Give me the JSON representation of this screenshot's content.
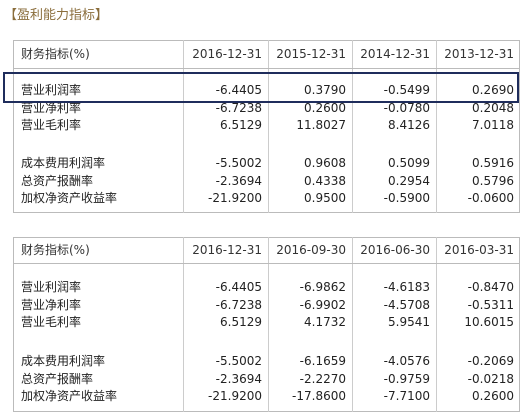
{
  "title": "【盈利能力指标】",
  "tables": [
    {
      "header": [
        "财务指标(%)",
        "2016-12-31",
        "2015-12-31",
        "2014-12-31",
        "2013-12-31"
      ],
      "groups": [
        [
          [
            "营业利润率",
            "-6.4405",
            "0.3790",
            "-0.5499",
            "0.2690"
          ],
          [
            "营业净利率",
            "-6.7238",
            "0.2600",
            "-0.0780",
            "0.2048"
          ],
          [
            "营业毛利率",
            "6.5129",
            "11.8027",
            "8.4126",
            "7.0118"
          ]
        ],
        [
          [
            "成本费用利润率",
            "-5.5002",
            "0.9608",
            "0.5099",
            "0.5916"
          ],
          [
            "总资产报酬率",
            "-2.3694",
            "0.4338",
            "0.2954",
            "0.5796"
          ],
          [
            "加权净资产收益率",
            "-21.9200",
            "0.9500",
            "-0.5900",
            "-0.0600"
          ]
        ]
      ]
    },
    {
      "header": [
        "财务指标(%)",
        "2016-12-31",
        "2016-09-30",
        "2016-06-30",
        "2016-03-31"
      ],
      "groups": [
        [
          [
            "营业利润率",
            "-6.4405",
            "-6.9862",
            "-4.6183",
            "-0.8470"
          ],
          [
            "营业净利率",
            "-6.7238",
            "-6.9902",
            "-4.5708",
            "-0.5311"
          ],
          [
            "营业毛利率",
            "6.5129",
            "4.1732",
            "5.9541",
            "10.6015"
          ]
        ],
        [
          [
            "成本费用利润率",
            "-5.5002",
            "-6.1659",
            "-4.0576",
            "-0.2069"
          ],
          [
            "总资产报酬率",
            "-2.3694",
            "-2.2270",
            "-0.9759",
            "-0.0218"
          ],
          [
            "加权净资产收益率",
            "-21.9200",
            "-17.8600",
            "-7.7100",
            "0.2600"
          ]
        ]
      ]
    }
  ]
}
